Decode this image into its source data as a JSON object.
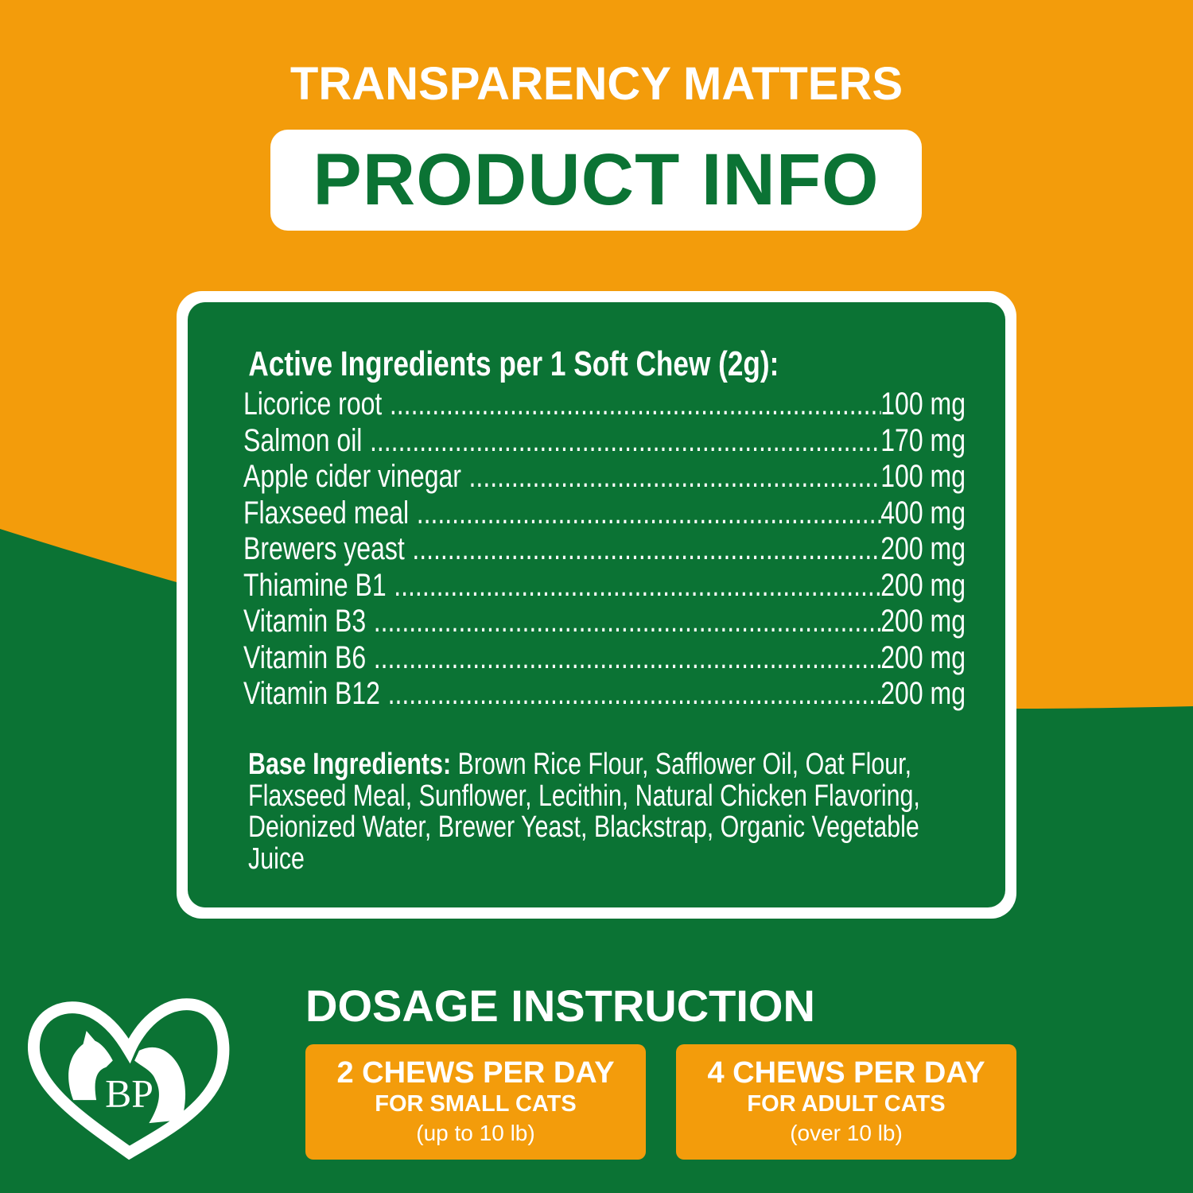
{
  "header": {
    "kicker": "TRANSPARENCY MATTERS",
    "title": "PRODUCT INFO"
  },
  "colors": {
    "orange": "#f39c0b",
    "green": "#0b7334",
    "white": "#ffffff"
  },
  "active": {
    "heading": "Active Ingredients per 1 Soft Chew (2g):",
    "items": [
      {
        "name": "Licorice root",
        "amount": "100 mg"
      },
      {
        "name": "Salmon oil",
        "amount": "170 mg"
      },
      {
        "name": "Apple cider vinegar",
        "amount": "100 mg"
      },
      {
        "name": "Flaxseed meal",
        "amount": "400 mg"
      },
      {
        "name": "Brewers yeast",
        "amount": "200 mg"
      },
      {
        "name": "Thiamine B1",
        "amount": "200 mg"
      },
      {
        "name": "Vitamin B3",
        "amount": "200 mg"
      },
      {
        "name": "Vitamin B6",
        "amount": "200 mg"
      },
      {
        "name": "Vitamin B12",
        "amount": "200 mg"
      }
    ]
  },
  "base": {
    "label": "Base Ingredients:",
    "text": "Brown Rice Flour, Safflower Oil, Oat Flour, Flaxseed Meal, Sunflower, Lecithin, Natural Chicken Flavoring, Deionized Water, Brewer Yeast, Blackstrap, Organic Vegetable Juice"
  },
  "dosage": {
    "title": "DOSAGE INSTRUCTION",
    "boxes": [
      {
        "amount": "2 CHEWS PER DAY",
        "who": "FOR SMALL CATS",
        "weight": "(up to 10 lb)"
      },
      {
        "amount": "4 CHEWS PER DAY",
        "who": "FOR ADULT CATS",
        "weight": "(over 10 lb)"
      }
    ]
  },
  "logo": {
    "letters": "BP",
    "icon": "heart-cat-dog-logo"
  }
}
